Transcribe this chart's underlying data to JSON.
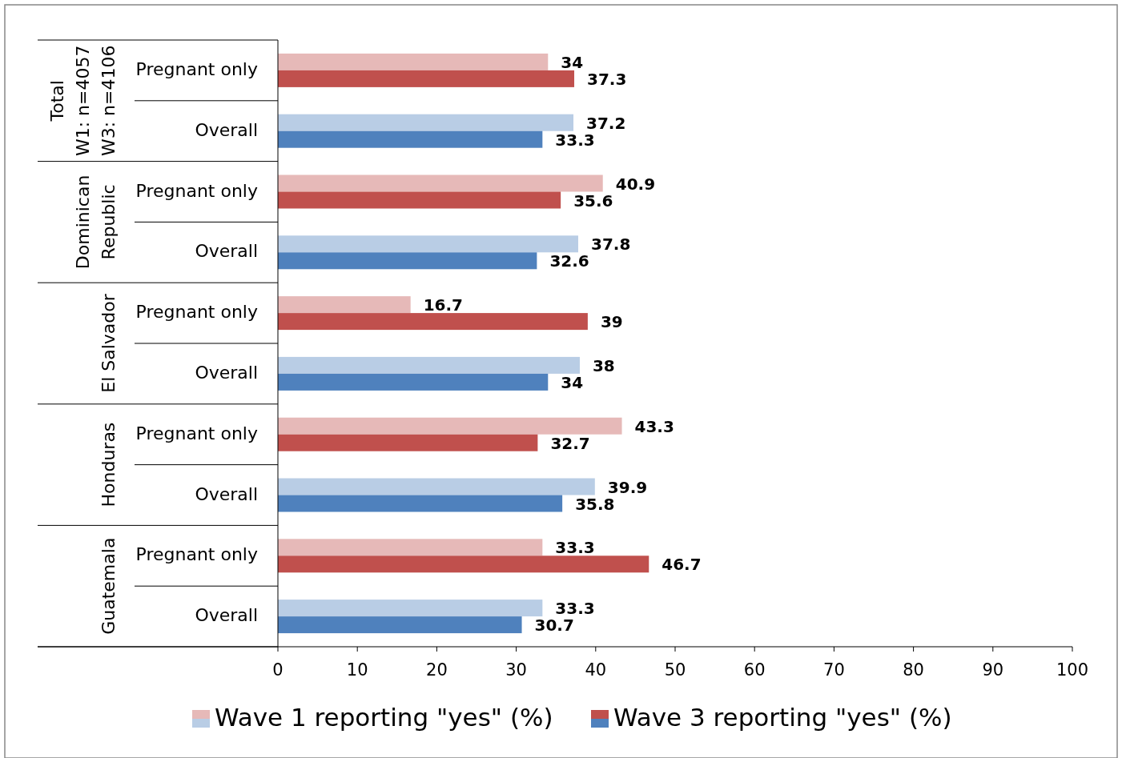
{
  "chart_data": {
    "type": "bar",
    "orientation": "horizontal",
    "categories": [
      "Pregnant only",
      "Overall",
      "Pregnant only",
      "Overall",
      "Pregnant only",
      "Overall",
      "Pregnant only",
      "Overall",
      "Pregnant only",
      "Overall"
    ],
    "annotations": [
      "Total\nW1: n=4057\nW3: n=4106",
      "Dominican\nRepublic",
      "El Salvador",
      "Honduras",
      "Guatemala"
    ],
    "series": [
      {
        "name": "Wave 1 reporting \"yes\" (%)",
        "colors": [
          "#e6b9b8",
          "#b9cde5",
          "#e6b9b8",
          "#b9cde5",
          "#e6b9b8",
          "#b9cde5",
          "#e6b9b8",
          "#b9cde5",
          "#e6b9b8",
          "#b9cde5"
        ],
        "values": [
          34,
          37.2,
          40.9,
          37.8,
          16.7,
          38,
          43.3,
          39.9,
          33.3,
          33.3
        ]
      },
      {
        "name": "Wave 3 reporting \"yes\" (%)",
        "colors": [
          "#c0504d",
          "#4f81bd",
          "#c0504d",
          "#4f81bd",
          "#c0504d",
          "#4f81bd",
          "#c0504d",
          "#4f81bd",
          "#c0504d",
          "#4f81bd"
        ],
        "values": [
          37.3,
          33.3,
          35.6,
          32.6,
          39,
          34,
          32.7,
          35.8,
          46.7,
          30.7
        ]
      }
    ],
    "xlim": [
      0,
      100
    ],
    "xticks": [
      0,
      10,
      20,
      30,
      40,
      50,
      60,
      70,
      80,
      90,
      100
    ],
    "data_labels": true,
    "legend": "bottom"
  }
}
